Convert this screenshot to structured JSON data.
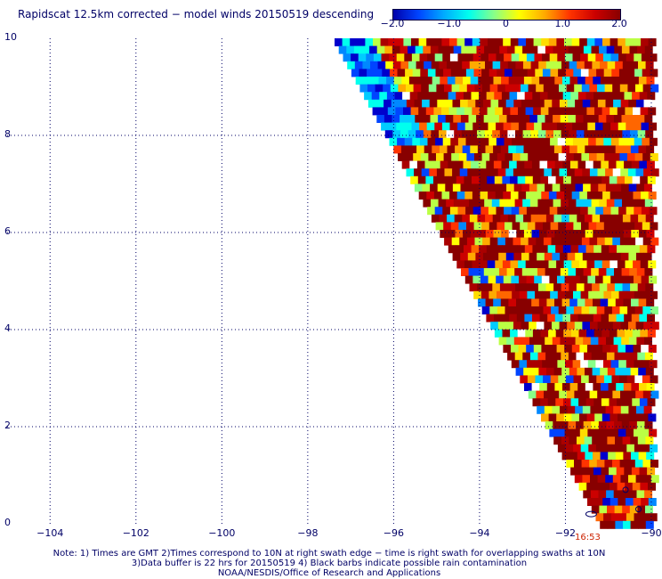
{
  "title": "Rapidscat 12.5km corrected − model winds 20150519 descending",
  "colorbar": {
    "tick_labels": [
      "−2.0",
      "−1.0",
      "0",
      "1.0",
      "2.0"
    ],
    "tick_values": [
      -2.0,
      -1.0,
      0,
      1.0,
      2.0
    ],
    "min": -2.0,
    "max": 2.0,
    "colors": [
      "#0000aa",
      "#0044ff",
      "#00aaff",
      "#00ffee",
      "#88ff88",
      "#ffff00",
      "#ffaa00",
      "#ff3300",
      "#cc0000",
      "#880000"
    ]
  },
  "map": {
    "lat_range": [
      0,
      10
    ],
    "lon_range": [
      -105,
      -90
    ],
    "lat_labels": [
      "10",
      "8",
      "6",
      "4",
      "2",
      "0"
    ],
    "lat_values": [
      10,
      8,
      6,
      4,
      2,
      0
    ],
    "lon_labels": [
      "−104",
      "−102",
      "−100",
      "−98",
      "−96",
      "−94",
      "−92",
      "−90"
    ],
    "lon_values": [
      -104,
      -102,
      -100,
      -98,
      -96,
      -94,
      -92,
      -90
    ],
    "grid": true,
    "swath_time": "16:53"
  },
  "notes": [
    "Note: 1) Times are GMT 2)Times correspond to 10N at right swath edge − time is right swath for overlapping swaths at 10N",
    "3)Data buffer is 22 hrs for 20150519 4) Black barbs indicate possible rain contamination",
    "NOAA/NESDIS/Office of Research and Applications"
  ]
}
